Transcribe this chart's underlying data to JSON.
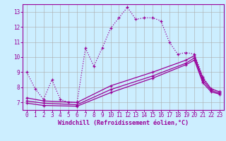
{
  "background_color": "#cceeff",
  "grid_color": "#aaaaaa",
  "line_color": "#990099",
  "xlabel": "Windchill (Refroidissement éolien,°C)",
  "ylim": [
    6.5,
    13.5
  ],
  "xlim": [
    -0.5,
    23.5
  ],
  "yticks": [
    7,
    8,
    9,
    10,
    11,
    12,
    13
  ],
  "xticks": [
    0,
    1,
    2,
    3,
    4,
    5,
    6,
    7,
    8,
    9,
    10,
    11,
    12,
    13,
    14,
    15,
    16,
    17,
    18,
    19,
    20,
    21,
    22,
    23
  ],
  "series": [
    {
      "x": [
        0,
        1,
        2,
        3,
        4,
        5,
        6,
        7,
        8,
        9,
        10,
        11,
        12,
        13,
        14,
        15,
        16,
        17,
        18,
        19,
        20,
        21,
        22,
        23
      ],
      "y": [
        9.0,
        7.9,
        7.2,
        8.5,
        7.2,
        7.0,
        7.0,
        10.6,
        9.4,
        10.6,
        11.9,
        12.6,
        13.3,
        12.5,
        12.6,
        12.6,
        12.4,
        11.0,
        10.2,
        10.3,
        10.2,
        8.7,
        7.9,
        7.7
      ],
      "linestyle": ":",
      "marker": "+"
    },
    {
      "x": [
        0,
        2,
        6,
        10,
        15,
        19,
        20,
        21,
        22,
        23
      ],
      "y": [
        7.3,
        7.1,
        7.0,
        8.1,
        9.0,
        9.8,
        10.1,
        8.6,
        7.9,
        7.7
      ],
      "linestyle": "-",
      "marker": "+"
    },
    {
      "x": [
        0,
        2,
        6,
        10,
        15,
        19,
        20,
        21,
        22,
        23
      ],
      "y": [
        7.1,
        6.95,
        6.85,
        7.85,
        8.75,
        9.6,
        9.95,
        8.45,
        7.8,
        7.6
      ],
      "linestyle": "-",
      "marker": "+"
    },
    {
      "x": [
        0,
        2,
        6,
        10,
        15,
        19,
        20,
        21,
        22,
        23
      ],
      "y": [
        6.95,
        6.8,
        6.75,
        7.65,
        8.6,
        9.5,
        9.8,
        8.3,
        7.7,
        7.55
      ],
      "linestyle": "-",
      "marker": "+"
    }
  ]
}
